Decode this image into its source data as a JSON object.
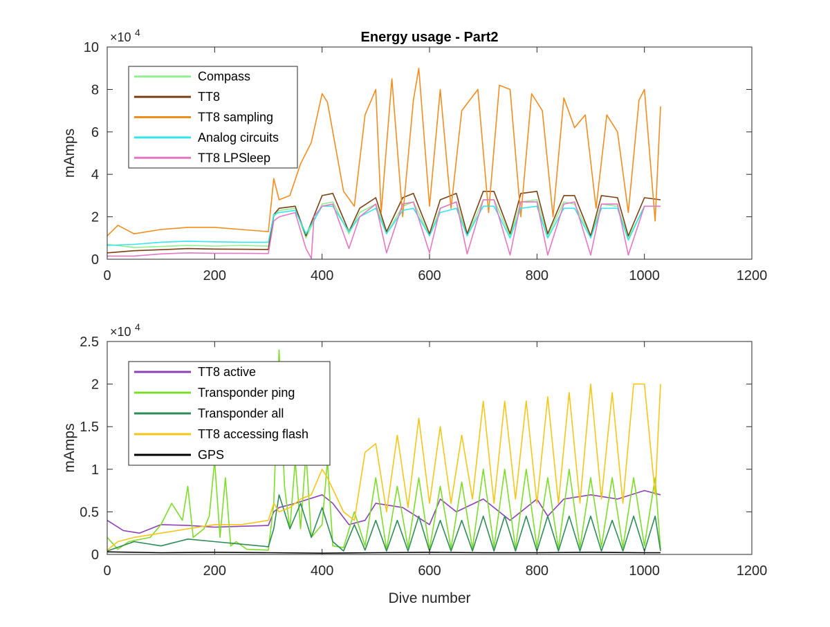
{
  "chart_data": [
    {
      "type": "line",
      "title": "Energy usage - Part2",
      "xlabel": "",
      "ylabel": "mAmps",
      "exponent_label": "×10",
      "exponent_power": "4",
      "xlim": [
        0,
        1200
      ],
      "ylim": [
        0,
        100000
      ],
      "xticks": [
        0,
        200,
        400,
        600,
        800,
        1000,
        1200
      ],
      "yticks": [
        0,
        20000,
        40000,
        60000,
        80000,
        100000
      ],
      "xtick_labels": [
        "0",
        "200",
        "400",
        "600",
        "800",
        "1000",
        "1200"
      ],
      "ytick_labels": [
        "0",
        "2",
        "4",
        "6",
        "8",
        "10"
      ],
      "legend_position": "top-left",
      "grid": false,
      "series": [
        {
          "name": "Compass",
          "color": "#90ee90",
          "x": [
            0,
            50,
            100,
            150,
            200,
            250,
            300,
            310,
            320,
            350,
            370,
            400,
            420,
            450,
            470,
            500,
            520,
            550,
            570,
            600,
            620,
            650,
            670,
            700,
            720,
            750,
            770,
            800,
            820,
            850,
            870,
            900,
            920,
            950,
            970,
            1000,
            1030
          ],
          "values": [
            7000,
            5500,
            6000,
            6500,
            6200,
            6500,
            6200,
            20000,
            23000,
            24000,
            10000,
            26000,
            27000,
            12000,
            22000,
            26000,
            12000,
            25000,
            27000,
            11000,
            24000,
            27000,
            11000,
            28000,
            28000,
            11000,
            27000,
            28000,
            11000,
            27000,
            26000,
            11000,
            26000,
            25000,
            10000,
            25000,
            25000
          ]
        },
        {
          "name": "TT8",
          "color": "#7b3f12",
          "x": [
            0,
            50,
            100,
            150,
            200,
            250,
            300,
            310,
            320,
            350,
            370,
            400,
            420,
            450,
            470,
            500,
            520,
            550,
            570,
            600,
            620,
            650,
            670,
            700,
            720,
            750,
            770,
            800,
            820,
            850,
            870,
            900,
            920,
            950,
            970,
            1000,
            1030
          ],
          "values": [
            3000,
            4000,
            4500,
            5000,
            4800,
            4700,
            4600,
            21000,
            24000,
            25000,
            11000,
            30000,
            31000,
            13000,
            24000,
            29000,
            13000,
            29000,
            31000,
            12000,
            28000,
            31000,
            12000,
            32000,
            32000,
            12000,
            31000,
            32000,
            12000,
            30000,
            30000,
            11000,
            30000,
            29000,
            11000,
            29000,
            28000
          ]
        },
        {
          "name": "TT8 sampling",
          "color": "#f28c1e",
          "x": [
            0,
            20,
            50,
            100,
            150,
            200,
            250,
            300,
            310,
            320,
            340,
            360,
            380,
            400,
            410,
            440,
            460,
            480,
            500,
            510,
            530,
            550,
            570,
            580,
            600,
            620,
            640,
            660,
            690,
            710,
            730,
            750,
            770,
            790,
            810,
            830,
            850,
            870,
            890,
            910,
            930,
            950,
            970,
            990,
            1000,
            1020,
            1030
          ],
          "values": [
            11000,
            16000,
            12000,
            14000,
            15000,
            15000,
            14000,
            13000,
            38000,
            28000,
            30000,
            45000,
            55000,
            78000,
            74000,
            32000,
            25000,
            68000,
            80000,
            22000,
            85000,
            20000,
            75000,
            90000,
            25000,
            80000,
            24000,
            70000,
            80000,
            22000,
            82000,
            80000,
            20000,
            78000,
            70000,
            20000,
            76000,
            62000,
            68000,
            24000,
            68000,
            60000,
            22000,
            75000,
            80000,
            18000,
            72000
          ]
        },
        {
          "name": "Analog circuits",
          "color": "#33e6ee",
          "x": [
            0,
            50,
            100,
            150,
            200,
            250,
            300,
            310,
            320,
            350,
            370,
            400,
            420,
            450,
            470,
            500,
            520,
            550,
            570,
            600,
            620,
            650,
            670,
            700,
            720,
            750,
            770,
            800,
            820,
            850,
            870,
            900,
            920,
            950,
            970,
            1000,
            1030
          ],
          "values": [
            6500,
            7000,
            8000,
            8500,
            8200,
            8000,
            8000,
            21000,
            22000,
            23000,
            12000,
            25000,
            25000,
            13000,
            20000,
            24000,
            12000,
            23000,
            24000,
            11000,
            22000,
            24000,
            11000,
            25000,
            25000,
            10000,
            24000,
            25000,
            10000,
            24000,
            24000,
            10000,
            24000,
            24000,
            9000,
            25000,
            25000
          ]
        },
        {
          "name": "TT8 LPSleep",
          "color": "#e377c2",
          "x": [
            0,
            50,
            100,
            150,
            200,
            250,
            300,
            310,
            320,
            350,
            370,
            380,
            385,
            400,
            420,
            450,
            470,
            500,
            520,
            550,
            570,
            600,
            620,
            650,
            670,
            700,
            720,
            750,
            770,
            800,
            820,
            850,
            870,
            900,
            920,
            950,
            970,
            1000,
            1030
          ],
          "values": [
            1500,
            1500,
            2500,
            3000,
            2800,
            2800,
            2700,
            18000,
            20000,
            22000,
            5000,
            400,
            20000,
            25000,
            26000,
            5000,
            20000,
            26000,
            3000,
            26000,
            27000,
            3000,
            24000,
            27000,
            2500,
            28000,
            28000,
            2000,
            27000,
            27000,
            2000,
            26000,
            27000,
            2000,
            26000,
            26000,
            2000,
            25000,
            25000
          ]
        }
      ]
    },
    {
      "type": "line",
      "title": "",
      "xlabel": "Dive number",
      "ylabel": "mAmps",
      "exponent_label": "×10",
      "exponent_power": "4",
      "xlim": [
        0,
        1200
      ],
      "ylim": [
        0,
        25000
      ],
      "xticks": [
        0,
        200,
        400,
        600,
        800,
        1000,
        1200
      ],
      "yticks": [
        0,
        5000,
        10000,
        15000,
        20000,
        25000
      ],
      "xtick_labels": [
        "0",
        "200",
        "400",
        "600",
        "800",
        "1000",
        "1200"
      ],
      "ytick_labels": [
        "0",
        "0.5",
        "1",
        "1.5",
        "2",
        "2.5"
      ],
      "legend_position": "top-left",
      "grid": false,
      "series": [
        {
          "name": "TT8 active",
          "color": "#8e3fb5",
          "x": [
            0,
            30,
            60,
            100,
            150,
            200,
            250,
            300,
            310,
            320,
            350,
            400,
            420,
            450,
            480,
            500,
            550,
            600,
            620,
            650,
            700,
            750,
            800,
            820,
            850,
            900,
            950,
            1000,
            1030
          ],
          "values": [
            4000,
            2800,
            2500,
            3500,
            3400,
            3200,
            3300,
            3400,
            5000,
            5500,
            6000,
            7000,
            6000,
            3500,
            4000,
            6000,
            5500,
            3500,
            6500,
            5000,
            6500,
            4000,
            6500,
            4500,
            6500,
            7000,
            6500,
            7500,
            7000
          ]
        },
        {
          "name": "Transponder ping",
          "color": "#7cdc27",
          "x": [
            0,
            20,
            40,
            80,
            100,
            120,
            140,
            150,
            160,
            180,
            190,
            200,
            210,
            220,
            230,
            240,
            260,
            300,
            310,
            320,
            330,
            340,
            350,
            360,
            370,
            380,
            400,
            410,
            420,
            440,
            460,
            480,
            500,
            520,
            540,
            560,
            580,
            600,
            620,
            640,
            660,
            680,
            700,
            720,
            740,
            760,
            780,
            800,
            820,
            840,
            860,
            880,
            900,
            920,
            940,
            960,
            980,
            1000,
            1020,
            1030
          ],
          "values": [
            2000,
            600,
            1500,
            2000,
            3500,
            6000,
            4000,
            8000,
            2000,
            3000,
            4500,
            11000,
            2000,
            9000,
            1000,
            1500,
            600,
            500,
            6000,
            24000,
            8000,
            3000,
            11000,
            3000,
            12000,
            2000,
            3500,
            11000,
            1000,
            800,
            5000,
            1000,
            9000,
            600,
            8000,
            800,
            9000,
            600,
            8000,
            700,
            8500,
            700,
            10000,
            800,
            10000,
            700,
            10000,
            800,
            9000,
            700,
            10000,
            800,
            9000,
            900,
            9000,
            800,
            9000,
            1000,
            9000,
            600
          ]
        },
        {
          "name": "Transponder all",
          "color": "#2e8b57",
          "x": [
            0,
            50,
            100,
            150,
            200,
            250,
            300,
            310,
            320,
            340,
            360,
            380,
            400,
            420,
            440,
            460,
            480,
            500,
            520,
            540,
            560,
            580,
            600,
            620,
            640,
            660,
            680,
            700,
            720,
            740,
            760,
            780,
            800,
            820,
            840,
            860,
            880,
            900,
            920,
            940,
            960,
            980,
            1000,
            1020,
            1030
          ],
          "values": [
            400,
            1500,
            1000,
            1800,
            1500,
            1200,
            900,
            3000,
            7000,
            3000,
            6000,
            2000,
            5500,
            1500,
            400,
            3500,
            500,
            4000,
            400,
            4000,
            400,
            4500,
            400,
            4000,
            400,
            4000,
            400,
            4500,
            400,
            4500,
            400,
            4500,
            400,
            4500,
            400,
            4500,
            400,
            4500,
            400,
            4000,
            400,
            4500,
            400,
            4500,
            400
          ]
        },
        {
          "name": "TT8 accessing flash",
          "color": "#f5c518",
          "x": [
            0,
            20,
            50,
            100,
            150,
            200,
            250,
            300,
            310,
            320,
            340,
            360,
            380,
            400,
            410,
            440,
            460,
            480,
            500,
            520,
            540,
            560,
            580,
            600,
            620,
            640,
            660,
            680,
            700,
            720,
            740,
            760,
            780,
            800,
            820,
            840,
            860,
            880,
            900,
            920,
            940,
            960,
            980,
            1000,
            1020,
            1030
          ],
          "values": [
            500,
            1500,
            2000,
            2500,
            3000,
            3500,
            3500,
            4000,
            6000,
            5000,
            5500,
            6500,
            7000,
            10000,
            9000,
            5000,
            4000,
            12000,
            13000,
            5000,
            14000,
            5500,
            16000,
            6000,
            15000,
            6000,
            14000,
            6500,
            18000,
            6000,
            18000,
            6500,
            18000,
            6000,
            18500,
            6000,
            19000,
            6000,
            20000,
            6500,
            19000,
            6000,
            20000,
            20000,
            7000,
            20000
          ]
        },
        {
          "name": "GPS",
          "color": "#000000",
          "x": [
            0,
            100,
            200,
            300,
            400,
            500,
            600,
            700,
            800,
            900,
            1000,
            1030
          ],
          "values": [
            300,
            200,
            250,
            200,
            150,
            200,
            250,
            200,
            200,
            250,
            200,
            200
          ]
        }
      ]
    }
  ]
}
